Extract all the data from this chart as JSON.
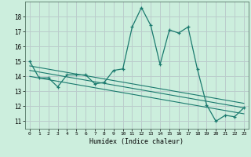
{
  "title": "",
  "xlabel": "Humidex (Indice chaleur)",
  "bg_color": "#cceedd",
  "grid_color": "#bbcccc",
  "line_color": "#1a7a6e",
  "xlim": [
    -0.5,
    23.5
  ],
  "ylim": [
    10.5,
    19.0
  ],
  "yticks": [
    11,
    12,
    13,
    14,
    15,
    16,
    17,
    18
  ],
  "xticks": [
    0,
    1,
    2,
    3,
    4,
    5,
    6,
    7,
    8,
    9,
    10,
    11,
    12,
    13,
    14,
    15,
    16,
    17,
    18,
    19,
    20,
    21,
    22,
    23
  ],
  "series": [
    [
      0,
      15.0
    ],
    [
      1,
      13.9
    ],
    [
      2,
      13.9
    ],
    [
      3,
      13.3
    ],
    [
      4,
      14.1
    ],
    [
      5,
      14.1
    ],
    [
      6,
      14.1
    ],
    [
      7,
      13.5
    ],
    [
      8,
      13.6
    ],
    [
      9,
      14.4
    ],
    [
      10,
      14.5
    ],
    [
      11,
      17.3
    ],
    [
      12,
      18.6
    ],
    [
      13,
      17.4
    ],
    [
      14,
      14.8
    ],
    [
      15,
      17.1
    ],
    [
      16,
      16.9
    ],
    [
      17,
      17.3
    ],
    [
      18,
      14.5
    ],
    [
      19,
      12.1
    ],
    [
      20,
      11.0
    ],
    [
      21,
      11.4
    ],
    [
      22,
      11.3
    ],
    [
      23,
      11.9
    ]
  ],
  "regression_lines": [
    {
      "x": [
        0,
        23
      ],
      "y": [
        14.7,
        12.2
      ]
    },
    {
      "x": [
        0,
        23
      ],
      "y": [
        14.4,
        11.9
      ]
    },
    {
      "x": [
        0,
        23
      ],
      "y": [
        14.0,
        11.5
      ]
    }
  ]
}
